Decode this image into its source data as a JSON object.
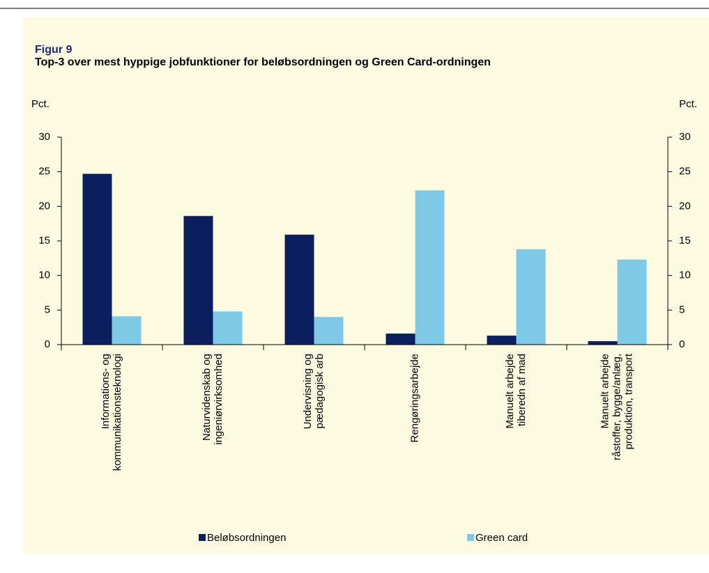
{
  "chart_data": {
    "type": "bar",
    "label": "Figur 9",
    "title": "Top-3 over mest hyppige jobfunktioner for beløbsordningen og Green Card-ordningen",
    "ylabel": "Pct.",
    "y2label": "Pct.",
    "categories": [
      "Informations- og\nkommunikationsteknologi",
      "Naturvidenskab og\ningeniørvirksomhed",
      "Undervisning og\npædagogisk arb",
      "Rengøringsarbejde",
      "Manuelt arbejde\ntiberedn af mad",
      "Manuelt arbejde\nråstoffer, bygge/anlæg,\nproduktion, transport"
    ],
    "series": [
      {
        "name": "Beløbsordningen",
        "color": "#0b1f5e",
        "values": [
          24.7,
          18.6,
          15.9,
          1.6,
          1.3,
          0.5
        ]
      },
      {
        "name": "Green card",
        "color": "#7ecae6",
        "values": [
          4.1,
          4.8,
          4.0,
          22.3,
          13.8,
          12.3
        ]
      }
    ],
    "ylim": [
      0,
      30
    ],
    "yticks": [
      0,
      5,
      10,
      15,
      20,
      25,
      30
    ],
    "y2lim": [
      0,
      30
    ],
    "y2ticks": [
      0,
      5,
      10,
      15,
      20,
      25,
      30
    ],
    "legend": "bottom"
  }
}
